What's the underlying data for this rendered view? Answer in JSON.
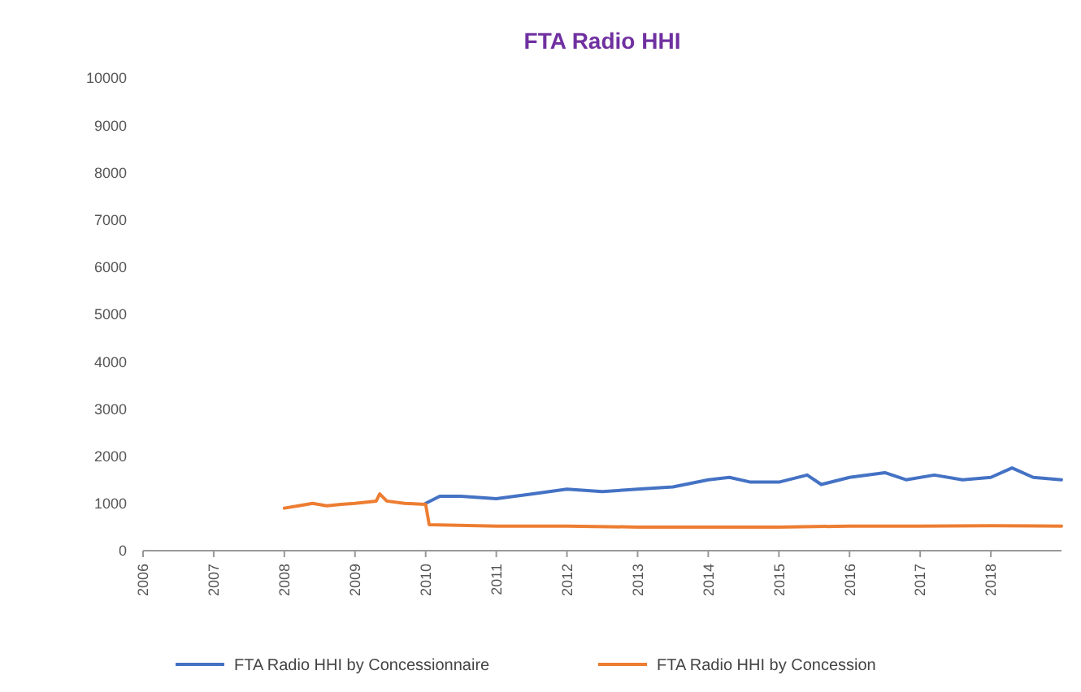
{
  "chart_data": {
    "type": "line",
    "title": "FTA Radio HHI",
    "xlim": [
      2006,
      2019
    ],
    "xticks": [
      2006,
      2007,
      2008,
      2009,
      2010,
      2011,
      2012,
      2013,
      2014,
      2015,
      2016,
      2017,
      2018
    ],
    "ylim": [
      0,
      10000
    ],
    "yticks": [
      0,
      1000,
      2000,
      3000,
      4000,
      5000,
      6000,
      7000,
      8000,
      9000,
      10000
    ],
    "grid": false,
    "legend": "bottom",
    "marker": "none",
    "line_style": "solid",
    "series": [
      {
        "name": "FTA Radio HHI  by Concessionnaire",
        "color": "#4472c4",
        "x": [
          2010.0,
          2010.2,
          2010.5,
          2011.0,
          2011.5,
          2012.0,
          2012.5,
          2013.0,
          2013.5,
          2014.0,
          2014.3,
          2014.6,
          2015.0,
          2015.4,
          2015.6,
          2016.0,
          2016.5,
          2016.8,
          2017.2,
          2017.6,
          2018.0,
          2018.3,
          2018.6,
          2019.0
        ],
        "values": [
          1000,
          1150,
          1150,
          1100,
          1200,
          1300,
          1250,
          1300,
          1350,
          1500,
          1550,
          1450,
          1450,
          1600,
          1400,
          1550,
          1650,
          1500,
          1600,
          1500,
          1550,
          1750,
          1550,
          1500
        ]
      },
      {
        "name": "FTA Radio HHI by Concession",
        "color": "#ed7d31",
        "x": [
          2008.0,
          2008.2,
          2008.4,
          2008.6,
          2008.8,
          2009.0,
          2009.3,
          2009.35,
          2009.45,
          2009.7,
          2010.0,
          2010.05,
          2011.0,
          2012.0,
          2013.0,
          2014.0,
          2015.0,
          2016.0,
          2017.0,
          2018.0,
          2019.0
        ],
        "values": [
          900,
          950,
          1000,
          950,
          980,
          1000,
          1050,
          1200,
          1050,
          1000,
          980,
          550,
          520,
          520,
          500,
          500,
          500,
          520,
          520,
          530,
          520
        ]
      }
    ]
  }
}
